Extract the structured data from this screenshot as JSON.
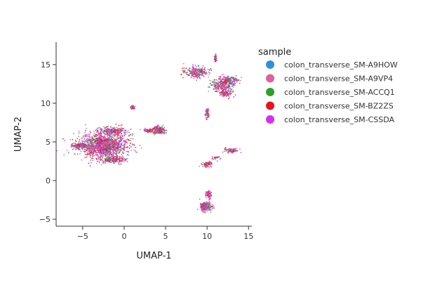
{
  "chart_data": {
    "type": "scatter",
    "xlabel": "UMAP-1",
    "ylabel": "UMAP-2",
    "xlim": [
      -8.2,
      15.4
    ],
    "ylim": [
      -5.9,
      17.9
    ],
    "xticks": [
      -5,
      0,
      5,
      10,
      15
    ],
    "yticks": [
      -5,
      0,
      5,
      10,
      15
    ],
    "xtick_labels": [
      "−5",
      "0",
      "5",
      "10",
      "15"
    ],
    "ytick_labels": [
      "−5",
      "0",
      "5",
      "10",
      "15"
    ],
    "grid": false,
    "legend": {
      "title": "sample",
      "placement": "right"
    },
    "series": [
      {
        "name": "colon_transverse_SM-A9HOW",
        "color": "#2f8fdc"
      },
      {
        "name": "colon_transverse_SM-A9VP4",
        "color": "#e0609a"
      },
      {
        "name": "colon_transverse_SM-ACCQ1",
        "color": "#2ca02c"
      },
      {
        "name": "colon_transverse_SM-BZ2ZS",
        "color": "#e8141b"
      },
      {
        "name": "colon_transverse_SM-CSSDA",
        "color": "#d42ef0"
      }
    ],
    "clusters": [
      {
        "cx": -2.5,
        "cy": 4.5,
        "sx": 2.0,
        "sy": 1.1,
        "n": 1500
      },
      {
        "cx": -5.5,
        "cy": 4.5,
        "sx": 0.6,
        "sy": 0.25,
        "n": 150
      },
      {
        "cx": -1.3,
        "cy": 6.4,
        "sx": 1.2,
        "sy": 0.35,
        "n": 260
      },
      {
        "cx": -1.3,
        "cy": 2.7,
        "sx": 1.0,
        "sy": 0.3,
        "n": 200
      },
      {
        "cx": 4.2,
        "cy": 6.5,
        "sx": 0.55,
        "sy": 0.35,
        "n": 220
      },
      {
        "cx": 3.0,
        "cy": 6.5,
        "sx": 0.5,
        "sy": 0.15,
        "n": 70
      },
      {
        "cx": 1.0,
        "cy": 9.5,
        "sx": 0.15,
        "sy": 0.2,
        "n": 35
      },
      {
        "cx": 8.8,
        "cy": 14.0,
        "sx": 1.0,
        "sy": 0.5,
        "n": 260
      },
      {
        "cx": 11.8,
        "cy": 12.4,
        "sx": 1.0,
        "sy": 0.6,
        "n": 300
      },
      {
        "cx": 12.3,
        "cy": 11.3,
        "sx": 0.55,
        "sy": 0.4,
        "n": 120
      },
      {
        "cx": 12.7,
        "cy": 13.0,
        "sx": 0.8,
        "sy": 0.35,
        "n": 120
      },
      {
        "cx": 11.0,
        "cy": 15.8,
        "sx": 0.12,
        "sy": 0.35,
        "n": 40
      },
      {
        "cx": 10.0,
        "cy": 8.6,
        "sx": 0.15,
        "sy": 0.5,
        "n": 70
      },
      {
        "cx": 10.0,
        "cy": 2.1,
        "sx": 0.4,
        "sy": 0.25,
        "n": 90
      },
      {
        "cx": 12.9,
        "cy": 3.9,
        "sx": 0.6,
        "sy": 0.18,
        "n": 100
      },
      {
        "cx": 11.2,
        "cy": 3.0,
        "sx": 0.5,
        "sy": 0.2,
        "n": 30
      },
      {
        "cx": 9.8,
        "cy": -3.4,
        "sx": 0.5,
        "sy": 0.4,
        "n": 230
      },
      {
        "cx": 10.2,
        "cy": -1.8,
        "sx": 0.25,
        "sy": 0.35,
        "n": 80
      }
    ]
  }
}
